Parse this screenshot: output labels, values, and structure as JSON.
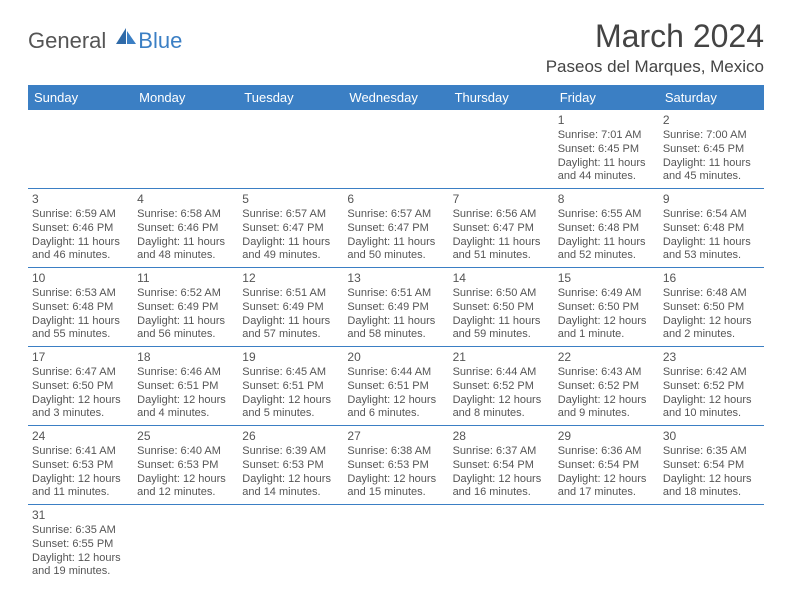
{
  "brand": {
    "part1": "General",
    "part2": "Blue"
  },
  "title": "March 2024",
  "location": "Paseos del Marques, Mexico",
  "colors": {
    "header_bg": "#3b7fc4",
    "header_fg": "#ffffff",
    "text": "#555555",
    "rule": "#3b7fc4",
    "page_bg": "#ffffff"
  },
  "weekdays": [
    "Sunday",
    "Monday",
    "Tuesday",
    "Wednesday",
    "Thursday",
    "Friday",
    "Saturday"
  ],
  "weeks": [
    [
      null,
      null,
      null,
      null,
      null,
      {
        "n": "1",
        "sr": "7:01 AM",
        "ss": "6:45 PM",
        "dl": "11 hours and 44 minutes."
      },
      {
        "n": "2",
        "sr": "7:00 AM",
        "ss": "6:45 PM",
        "dl": "11 hours and 45 minutes."
      }
    ],
    [
      {
        "n": "3",
        "sr": "6:59 AM",
        "ss": "6:46 PM",
        "dl": "11 hours and 46 minutes."
      },
      {
        "n": "4",
        "sr": "6:58 AM",
        "ss": "6:46 PM",
        "dl": "11 hours and 48 minutes."
      },
      {
        "n": "5",
        "sr": "6:57 AM",
        "ss": "6:47 PM",
        "dl": "11 hours and 49 minutes."
      },
      {
        "n": "6",
        "sr": "6:57 AM",
        "ss": "6:47 PM",
        "dl": "11 hours and 50 minutes."
      },
      {
        "n": "7",
        "sr": "6:56 AM",
        "ss": "6:47 PM",
        "dl": "11 hours and 51 minutes."
      },
      {
        "n": "8",
        "sr": "6:55 AM",
        "ss": "6:48 PM",
        "dl": "11 hours and 52 minutes."
      },
      {
        "n": "9",
        "sr": "6:54 AM",
        "ss": "6:48 PM",
        "dl": "11 hours and 53 minutes."
      }
    ],
    [
      {
        "n": "10",
        "sr": "6:53 AM",
        "ss": "6:48 PM",
        "dl": "11 hours and 55 minutes."
      },
      {
        "n": "11",
        "sr": "6:52 AM",
        "ss": "6:49 PM",
        "dl": "11 hours and 56 minutes."
      },
      {
        "n": "12",
        "sr": "6:51 AM",
        "ss": "6:49 PM",
        "dl": "11 hours and 57 minutes."
      },
      {
        "n": "13",
        "sr": "6:51 AM",
        "ss": "6:49 PM",
        "dl": "11 hours and 58 minutes."
      },
      {
        "n": "14",
        "sr": "6:50 AM",
        "ss": "6:50 PM",
        "dl": "11 hours and 59 minutes."
      },
      {
        "n": "15",
        "sr": "6:49 AM",
        "ss": "6:50 PM",
        "dl": "12 hours and 1 minute."
      },
      {
        "n": "16",
        "sr": "6:48 AM",
        "ss": "6:50 PM",
        "dl": "12 hours and 2 minutes."
      }
    ],
    [
      {
        "n": "17",
        "sr": "6:47 AM",
        "ss": "6:50 PM",
        "dl": "12 hours and 3 minutes."
      },
      {
        "n": "18",
        "sr": "6:46 AM",
        "ss": "6:51 PM",
        "dl": "12 hours and 4 minutes."
      },
      {
        "n": "19",
        "sr": "6:45 AM",
        "ss": "6:51 PM",
        "dl": "12 hours and 5 minutes."
      },
      {
        "n": "20",
        "sr": "6:44 AM",
        "ss": "6:51 PM",
        "dl": "12 hours and 6 minutes."
      },
      {
        "n": "21",
        "sr": "6:44 AM",
        "ss": "6:52 PM",
        "dl": "12 hours and 8 minutes."
      },
      {
        "n": "22",
        "sr": "6:43 AM",
        "ss": "6:52 PM",
        "dl": "12 hours and 9 minutes."
      },
      {
        "n": "23",
        "sr": "6:42 AM",
        "ss": "6:52 PM",
        "dl": "12 hours and 10 minutes."
      }
    ],
    [
      {
        "n": "24",
        "sr": "6:41 AM",
        "ss": "6:53 PM",
        "dl": "12 hours and 11 minutes."
      },
      {
        "n": "25",
        "sr": "6:40 AM",
        "ss": "6:53 PM",
        "dl": "12 hours and 12 minutes."
      },
      {
        "n": "26",
        "sr": "6:39 AM",
        "ss": "6:53 PM",
        "dl": "12 hours and 14 minutes."
      },
      {
        "n": "27",
        "sr": "6:38 AM",
        "ss": "6:53 PM",
        "dl": "12 hours and 15 minutes."
      },
      {
        "n": "28",
        "sr": "6:37 AM",
        "ss": "6:54 PM",
        "dl": "12 hours and 16 minutes."
      },
      {
        "n": "29",
        "sr": "6:36 AM",
        "ss": "6:54 PM",
        "dl": "12 hours and 17 minutes."
      },
      {
        "n": "30",
        "sr": "6:35 AM",
        "ss": "6:54 PM",
        "dl": "12 hours and 18 minutes."
      }
    ],
    [
      {
        "n": "31",
        "sr": "6:35 AM",
        "ss": "6:55 PM",
        "dl": "12 hours and 19 minutes."
      },
      null,
      null,
      null,
      null,
      null,
      null
    ]
  ],
  "labels": {
    "sunrise": "Sunrise:",
    "sunset": "Sunset:",
    "daylight": "Daylight:"
  }
}
